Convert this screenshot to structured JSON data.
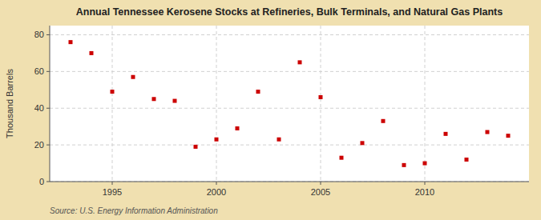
{
  "chart_data": {
    "type": "scatter",
    "title": "Annual Tennessee Kerosene Stocks at Refineries, Bulk Terminals, and Natural Gas Plants",
    "ylabel": "Thousand Barrels",
    "annotations": [
      "Source: U.S. Energy Information Administration"
    ],
    "x": [
      1993,
      1994,
      1995,
      1996,
      1997,
      1998,
      1999,
      2000,
      2001,
      2002,
      2003,
      2004,
      2005,
      2006,
      2007,
      2008,
      2009,
      2010,
      2011,
      2012,
      2013,
      2014
    ],
    "values": [
      76,
      70,
      49,
      57,
      45,
      44,
      19,
      23,
      29,
      49,
      23,
      65,
      46,
      13,
      21,
      33,
      9,
      10,
      26,
      12,
      27,
      25
    ],
    "color": "#cc0000",
    "marker": "square",
    "xlim": [
      1992,
      2015
    ],
    "xticks": [
      1995,
      2000,
      2005,
      2010
    ],
    "ylim": [
      0,
      85
    ],
    "yticks": [
      0,
      20,
      40,
      60,
      80
    ],
    "grid": true
  }
}
